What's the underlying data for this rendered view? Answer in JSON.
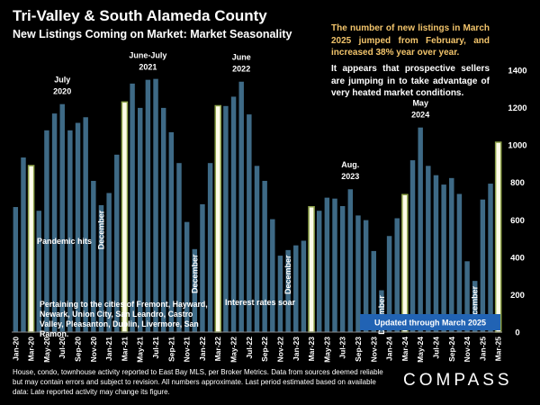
{
  "header": {
    "title": "Tri-Valley & South Alameda County",
    "subtitle": "New Listings Coming on Market: Market Seasonality"
  },
  "notes": {
    "yellow": "The number of new listings in March 2025 jumped from February, and increased 38% year over year.",
    "white": "It appears that prospective sellers are jumping in to take advantage of very heated market conditions."
  },
  "footer": {
    "source": "House, condo, townhouse activity reported to East Bay MLS, per Broker Metrics. Data from sources deemed reliable but may contain errors and subject to revision. All numbers approximate. Last period estimated based on available data: Late reported activity may change its figure.",
    "brand": "COMPASS"
  },
  "colors": {
    "background": "#000000",
    "bar": "#3e6a86",
    "highlight_bar": "#fdfbe8",
    "highlight_outline": "#8ea34a",
    "accent_note": "#f2c46b",
    "update_box": "#2163b4"
  },
  "chart_data": {
    "type": "bar",
    "xlabel": "",
    "ylabel": "",
    "ylim": [
      0,
      1400
    ],
    "yticks": [
      0,
      200,
      400,
      600,
      800,
      1000,
      1200,
      1400
    ],
    "y_axis_position": "right",
    "grid": false,
    "legend": "none",
    "categories": [
      "Jan-20",
      "Feb-20",
      "Mar-20",
      "Apr-20",
      "May-20",
      "Jun-20",
      "Jul-20",
      "Aug-20",
      "Sep-20",
      "Oct-20",
      "Nov-20",
      "Dec-20",
      "Jan-21",
      "Feb-21",
      "Mar-21",
      "Apr-21",
      "May-21",
      "Jun-21",
      "Jul-21",
      "Aug-21",
      "Sep-21",
      "Oct-21",
      "Nov-21",
      "Dec-21",
      "Jan-22",
      "Feb-22",
      "Mar-22",
      "Apr-22",
      "May-22",
      "Jun-22",
      "Jul-22",
      "Aug-22",
      "Sep-22",
      "Oct-22",
      "Nov-22",
      "Dec-22",
      "Jan-23",
      "Feb-23",
      "Mar-23",
      "Apr-23",
      "May-23",
      "Jun-23",
      "Jul-23",
      "Aug-23",
      "Sep-23",
      "Oct-23",
      "Nov-23",
      "Dec-23",
      "Jan-24",
      "Feb-24",
      "Mar-24",
      "Apr-24",
      "May-24",
      "Jun-24",
      "Jul-24",
      "Aug-24",
      "Sep-24",
      "Oct-24",
      "Nov-24",
      "Dec-24",
      "Jan-25",
      "Feb-25",
      "Mar-25"
    ],
    "x_tick_labels": [
      "Jan-20",
      "Mar-20",
      "May-20",
      "Jul-20",
      "Sep-20",
      "Nov-20",
      "Jan-21",
      "Mar-21",
      "May-21",
      "Jul-21",
      "Sep-21",
      "Nov-21",
      "Jan-22",
      "Mar-22",
      "May-22",
      "Jul-22",
      "Sep-22",
      "Nov-22",
      "Jan-23",
      "Mar-23",
      "May-23",
      "Jul-23",
      "Sep-23",
      "Nov-23",
      "Jan-24",
      "Mar-24",
      "May-24",
      "Jul-24",
      "Sep-24",
      "Nov-24",
      "Jan-25",
      "Mar-25"
    ],
    "values": [
      670,
      935,
      890,
      650,
      1080,
      1170,
      1220,
      1080,
      1120,
      1150,
      810,
      680,
      745,
      950,
      1230,
      1330,
      1200,
      1350,
      1355,
      1200,
      1070,
      905,
      590,
      445,
      685,
      905,
      1210,
      1210,
      1260,
      1340,
      1165,
      890,
      810,
      605,
      410,
      440,
      465,
      490,
      670,
      650,
      720,
      715,
      675,
      765,
      625,
      600,
      435,
      225,
      515,
      610,
      735,
      920,
      1095,
      890,
      840,
      790,
      825,
      740,
      380,
      275,
      710,
      795,
      1015
    ],
    "highlighted_categories": [
      "Mar-20",
      "Mar-21",
      "Mar-22",
      "Mar-23",
      "Mar-24",
      "Mar-25"
    ],
    "annotations": [
      {
        "text": "July",
        "category": "Jul-20",
        "line": 1
      },
      {
        "text": "2020",
        "category": "Jul-20",
        "line": 2
      },
      {
        "text": "June-July",
        "category": "Jun-21",
        "line": 1
      },
      {
        "text": "2021",
        "category": "Jun-21",
        "line": 2
      },
      {
        "text": "June",
        "category": "Jun-22",
        "line": 1
      },
      {
        "text": "2022",
        "category": "Jun-22",
        "line": 2
      },
      {
        "text": "Aug.",
        "category": "Aug-23",
        "line": 1
      },
      {
        "text": "2023",
        "category": "Aug-23",
        "line": 2
      },
      {
        "text": "May",
        "category": "May-24",
        "line": 1
      },
      {
        "text": "2024",
        "category": "May-24",
        "line": 2
      }
    ],
    "december_labels": [
      {
        "text": "December",
        "category": "Dec-20"
      },
      {
        "text": "December",
        "category": "Dec-21"
      },
      {
        "text": "December",
        "category": "Dec-22"
      },
      {
        "text": "December",
        "category": "Dec-23"
      },
      {
        "text": "December",
        "category": "Dec-24"
      }
    ],
    "callouts": {
      "pandemic": "Pandemic hits",
      "rates": "Interest rates soar",
      "cities": "Pertaining to the cities of Fremont, Hayward, Newark, Union City, San Leandro, Castro Valley, Pleasanton, Dublin, Livermore, San Ramon.",
      "updated": "Updated through March 2025"
    }
  }
}
